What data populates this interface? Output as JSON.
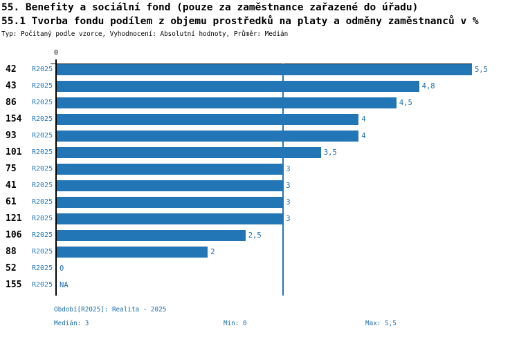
{
  "title_line1": "55. Benefity a sociální fond (pouze za zaměstnance zařazené do úřadu)",
  "title_line2": "55.1 Tvorba fondu podílem z objemu prostředků na platy a odměny zaměstnanců v %",
  "meta_line": "Typ: Počítaný podle vzorce, Vyhodnocení: Absolutní hodnoty, Průměr: Medián",
  "chart_data": {
    "type": "bar",
    "orientation": "horizontal",
    "title": "55.1 Tvorba fondu podílem z objemu prostředků na platy a odměny zaměstnanců v %",
    "axis": {
      "tick_label": "0",
      "xlim": [
        0,
        5.5
      ],
      "grid": false,
      "median_reference_line": 3
    },
    "categories": [
      "42",
      "43",
      "86",
      "154",
      "93",
      "101",
      "75",
      "41",
      "61",
      "121",
      "106",
      "88",
      "52",
      "155"
    ],
    "series": [
      {
        "name": "R2025",
        "values": [
          5.5,
          4.8,
          4.5,
          4,
          4,
          3.5,
          3,
          3,
          3,
          3,
          2.5,
          2,
          0,
          null
        ]
      }
    ],
    "rows": [
      {
        "id": "42",
        "period": "R2025",
        "value": 5.5,
        "label": "5,5"
      },
      {
        "id": "43",
        "period": "R2025",
        "value": 4.8,
        "label": "4,8"
      },
      {
        "id": "86",
        "period": "R2025",
        "value": 4.5,
        "label": "4,5"
      },
      {
        "id": "154",
        "period": "R2025",
        "value": 4,
        "label": "4"
      },
      {
        "id": "93",
        "period": "R2025",
        "value": 4,
        "label": "4"
      },
      {
        "id": "101",
        "period": "R2025",
        "value": 3.5,
        "label": "3,5"
      },
      {
        "id": "75",
        "period": "R2025",
        "value": 3,
        "label": "3"
      },
      {
        "id": "41",
        "period": "R2025",
        "value": 3,
        "label": "3"
      },
      {
        "id": "61",
        "period": "R2025",
        "value": 3,
        "label": "3"
      },
      {
        "id": "121",
        "period": "R2025",
        "value": 3,
        "label": "3"
      },
      {
        "id": "106",
        "period": "R2025",
        "value": 2.5,
        "label": "2,5"
      },
      {
        "id": "88",
        "period": "R2025",
        "value": 2,
        "label": "2"
      },
      {
        "id": "52",
        "period": "R2025",
        "value": 0,
        "label": "0"
      },
      {
        "id": "155",
        "period": "R2025",
        "value": null,
        "label": "NA"
      }
    ],
    "colors": {
      "bar": "#2276B6",
      "period_label": "#2478B5",
      "value_label": "#1D6DA8",
      "median_line": "#2276B6",
      "axis": "#000000",
      "footer_text": "#1B6CA8"
    },
    "summary": {
      "median": 3,
      "min": 0,
      "max": 5.5
    }
  },
  "footer": {
    "period_info": "Období[R2025]: Realita - 2025",
    "median": "Medián: 3",
    "min": "Min: 0",
    "max": "Max: 5,5"
  }
}
